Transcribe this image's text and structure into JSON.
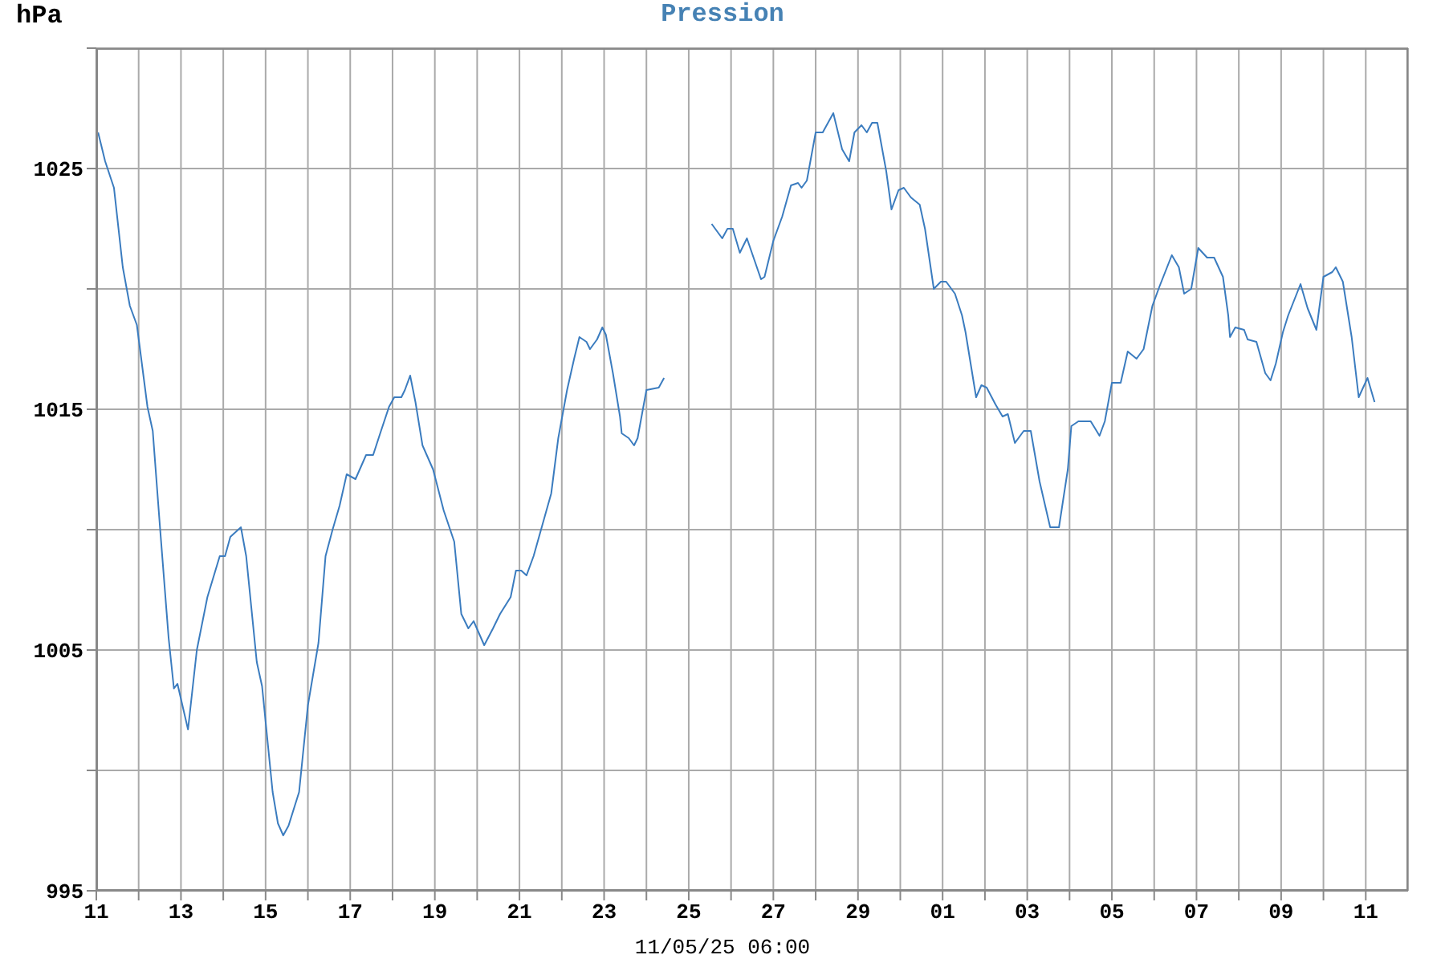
{
  "chart_data": {
    "type": "line",
    "title": "Pression",
    "xlabel": "11/05/25 06:00",
    "ylabel": "hPa",
    "x": [
      "--04-11T01:00",
      "--04-11T05:00",
      "--04-11T10:00",
      "--04-11T15:00",
      "--04-11T19:00",
      "--04-11T23:00",
      "--04-12T05:00",
      "--04-12T08:00",
      "--04-12T12:00",
      "--04-12T17:00",
      "--04-12T20:00",
      "--04-12T22:00",
      "--04-13T04:00",
      "--04-13T09:00",
      "--04-13T15:00",
      "--04-13T22:00",
      "--04-14T01:00",
      "--04-14T04:00",
      "--04-14T10:00",
      "--04-14T13:00",
      "--04-14T19:00",
      "--04-14T22:00",
      "--04-15T04:00",
      "--04-15T07:00",
      "--04-15T10:00",
      "--04-15T13:00",
      "--04-15T19:00",
      "--04-16T00:00",
      "--04-16T06:00",
      "--04-16T10:00",
      "--04-16T14:00",
      "--04-16T18:00",
      "--04-16T22:00",
      "--04-17T03:00",
      "--04-17T09:00",
      "--04-17T13:00",
      "--04-17T17:00",
      "--04-17T22:00",
      "--04-18T01:00",
      "--04-18T05:00",
      "--04-18T07:00",
      "--04-18T10:00",
      "--04-18T13:00",
      "--04-18T17:00",
      "--04-18T23:00",
      "--04-19T05:00",
      "--04-19T11:00",
      "--04-19T15:00",
      "--04-19T19:00",
      "--04-19T22:00",
      "--04-20T04:00",
      "--04-20T09:00",
      "--04-20T13:00",
      "--04-20T19:00",
      "--04-20T22:00",
      "--04-21T01:00",
      "--04-21T04:00",
      "--04-21T08:00",
      "--04-21T13:00",
      "--04-21T18:00",
      "--04-21T22:00",
      "--04-22T03:00",
      "--04-22T07:00",
      "--04-22T10:00",
      "--04-22T14:00",
      "--04-22T16:00",
      "--04-22T20:00",
      "--04-22T23:00",
      "--04-23T01:00",
      "--04-23T05:00",
      "--04-23T09:00",
      "--04-23T10:00",
      "--04-23T14:00",
      "--04-23T17:00",
      "--04-23T19:00",
      "--04-24T00:00",
      "--04-24T07:00",
      "--04-24T10:00",
      "--04-25T00:00",
      "--04-25T13:00",
      "--04-25T19:00",
      "--04-25T22:00",
      "--04-26T01:00",
      "--04-26T05:00",
      "--04-26T09:00",
      "--04-26T17:00",
      "--04-26T19:00",
      "--04-27T00:00",
      "--04-27T05:00",
      "--04-27T10:00",
      "--04-27T14:00",
      "--04-27T16:00",
      "--04-27T19:00",
      "--04-28T00:00",
      "--04-28T04:00",
      "--04-28T10:00",
      "--04-28T15:00",
      "--04-28T19:00",
      "--04-28T22:00",
      "--04-29T02:00",
      "--04-29T05:00",
      "--04-29T08:00",
      "--04-29T11:00",
      "--04-29T16:00",
      "--04-29T19:00",
      "--04-29T23:00",
      "--04-30T02:00",
      "--04-30T06:00",
      "--04-30T11:00",
      "--04-30T14:00",
      "--04-30T19:00",
      "--04-30T23:00",
      "--05-01T02:00",
      "--05-01T07:00",
      "--05-01T11:00",
      "--05-01T13:00",
      "--05-01T19:00",
      "--05-01T22:00",
      "--05-02T01:00",
      "--05-02T06:00",
      "--05-02T10:00",
      "--05-02T13:00",
      "--05-02T17:00",
      "--05-02T22:00",
      "--05-03T02:00",
      "--05-03T07:00",
      "--05-03T13:00",
      "--05-03T18:00",
      "--05-03T23:00",
      "--05-04T01:00",
      "--05-04T05:00",
      "--05-04T12:00",
      "--05-04T17:00",
      "--05-04T20:00",
      "--05-05T00:00",
      "--05-05T05:00",
      "--05-05T09:00",
      "--05-05T14:00",
      "--05-05T18:00",
      "--05-05T23:00",
      "--05-06T03:00",
      "--05-06T10:00",
      "--05-06T14:00",
      "--05-06T17:00",
      "--05-06T21:00",
      "--05-07T01:00",
      "--05-07T06:00",
      "--05-07T10:00",
      "--05-07T15:00",
      "--05-07T18:00",
      "--05-07T19:00",
      "--05-07T22:00",
      "--05-08T03:00",
      "--05-08T05:00",
      "--05-08T10:00",
      "--05-08T15:00",
      "--05-08T18:00",
      "--05-08T21:00",
      "--05-09T01:00",
      "--05-09T04:00",
      "--05-09T11:00",
      "--05-09T15:00",
      "--05-09T20:00",
      "--05-10T00:00",
      "--05-10T05:00",
      "--05-10T07:00",
      "--05-10T11:00",
      "--05-10T16:00",
      "--05-10T20:00",
      "--05-11T01:00",
      "--05-11T05:00"
    ],
    "series": [
      {
        "color": "#3b7cbf",
        "values": [
          1026.5,
          1025.3,
          1024.2,
          1020.9,
          1019.3,
          1018.5,
          1015.1,
          1014.1,
          1010.2,
          1005.5,
          1003.4,
          1003.6,
          1001.7,
          1005.0,
          1007.2,
          1008.9,
          1008.9,
          1009.7,
          1010.1,
          1008.9,
          1004.5,
          1003.5,
          999.1,
          997.8,
          997.3,
          997.7,
          999.1,
          1002.7,
          1005.3,
          1008.9,
          1010.0,
          1011.0,
          1012.3,
          1012.1,
          1013.1,
          1013.1,
          1014.0,
          1015.1,
          1015.5,
          1015.5,
          1015.8,
          1016.4,
          1015.3,
          1013.5,
          1012.5,
          1010.8,
          1009.5,
          1006.5,
          1005.9,
          1006.2,
          1005.2,
          1005.9,
          1006.5,
          1007.2,
          1008.3,
          1008.3,
          1008.1,
          1008.9,
          1010.2,
          1011.5,
          1013.8,
          1015.8,
          1017.1,
          1018.0,
          1017.8,
          1017.5,
          1017.9,
          1018.4,
          1018.1,
          1016.5,
          1014.7,
          1014.0,
          1013.8,
          1013.5,
          1013.8,
          1015.8,
          1015.9,
          1016.3,
          null,
          1022.7,
          1022.1,
          1022.5,
          1022.5,
          1021.5,
          1022.1,
          1020.4,
          1020.5,
          1022.0,
          1023.0,
          1024.3,
          1024.4,
          1024.2,
          1024.5,
          1026.5,
          1026.5,
          1027.3,
          1025.8,
          1025.3,
          1026.5,
          1026.8,
          1026.5,
          1026.9,
          1026.9,
          1024.9,
          1023.3,
          1024.1,
          1024.2,
          1023.8,
          1023.5,
          1022.5,
          1020.0,
          1020.3,
          1020.3,
          1019.8,
          1018.9,
          1018.2,
          1015.5,
          1016.0,
          1015.9,
          1015.2,
          1014.7,
          1014.8,
          1013.6,
          1014.1,
          1014.1,
          1012.0,
          1010.1,
          1010.1,
          1012.5,
          1014.3,
          1014.5,
          1014.5,
          1013.9,
          1014.5,
          1016.1,
          1016.1,
          1017.4,
          1017.1,
          1017.5,
          1019.3,
          1020.1,
          1021.4,
          1020.9,
          1019.8,
          1020.0,
          1021.7,
          1021.3,
          1021.3,
          1020.5,
          1018.9,
          1018.0,
          1018.4,
          1018.3,
          1017.9,
          1017.8,
          1016.5,
          1016.2,
          1016.9,
          1018.2,
          1018.9,
          1020.2,
          1019.2,
          1018.3,
          1020.5,
          1020.7,
          1020.9,
          1020.3,
          1018.0,
          1015.5,
          1016.3,
          1015.3
        ]
      }
    ],
    "xlim": [
      "--04-11",
      "--05-12"
    ],
    "xticks": [
      {
        "value": "--04-11",
        "label": "11"
      },
      {
        "value": "--04-12",
        "label": null
      },
      {
        "value": "--04-13",
        "label": "13"
      },
      {
        "value": "--04-14",
        "label": null
      },
      {
        "value": "--04-15",
        "label": "15"
      },
      {
        "value": "--04-16",
        "label": null
      },
      {
        "value": "--04-17",
        "label": "17"
      },
      {
        "value": "--04-18",
        "label": null
      },
      {
        "value": "--04-19",
        "label": "19"
      },
      {
        "value": "--04-20",
        "label": null
      },
      {
        "value": "--04-21",
        "label": "21"
      },
      {
        "value": "--04-22",
        "label": null
      },
      {
        "value": "--04-23",
        "label": "23"
      },
      {
        "value": "--04-24",
        "label": null
      },
      {
        "value": "--04-25",
        "label": "25"
      },
      {
        "value": "--04-26",
        "label": null
      },
      {
        "value": "--04-27",
        "label": "27"
      },
      {
        "value": "--04-28",
        "label": null
      },
      {
        "value": "--04-29",
        "label": "29"
      },
      {
        "value": "--04-30",
        "label": null
      },
      {
        "value": "--05-01",
        "label": "01"
      },
      {
        "value": "--05-02",
        "label": null
      },
      {
        "value": "--05-03",
        "label": "03"
      },
      {
        "value": "--05-04",
        "label": null
      },
      {
        "value": "--05-05",
        "label": "05"
      },
      {
        "value": "--05-06",
        "label": null
      },
      {
        "value": "--05-07",
        "label": "07"
      },
      {
        "value": "--05-08",
        "label": null
      },
      {
        "value": "--05-09",
        "label": "09"
      },
      {
        "value": "--05-10",
        "label": null
      },
      {
        "value": "--05-11",
        "label": "11"
      }
    ],
    "ylim": [
      995,
      1030
    ],
    "yticks": [
      995,
      {
        "value": 1000,
        "label": null
      },
      1005,
      {
        "value": 1010,
        "label": null
      },
      1015,
      {
        "value": 1020,
        "label": null
      },
      1025,
      {
        "value": 1030,
        "label": null
      }
    ],
    "grid": true,
    "line_style": "solid"
  }
}
